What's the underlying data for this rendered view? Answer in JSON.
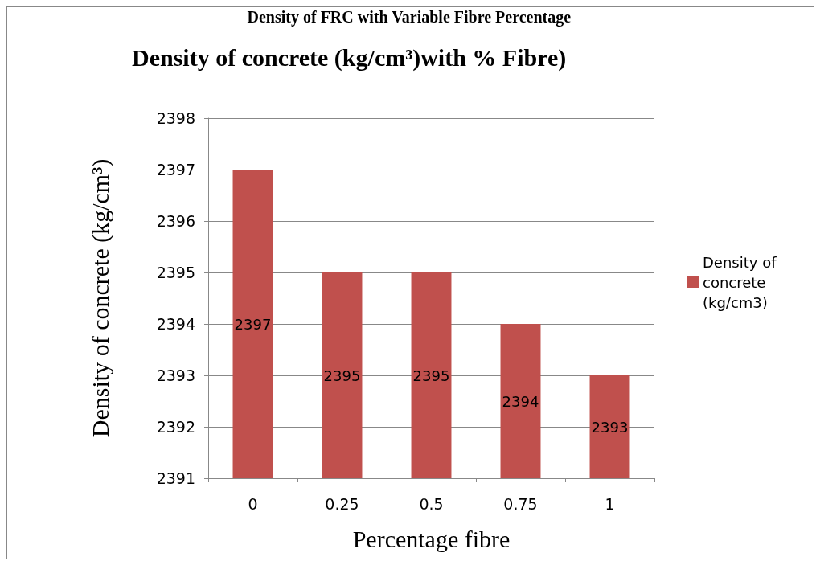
{
  "chart_data": {
    "type": "bar",
    "title": "Density of concrete (kg/cm³)with % Fibre)",
    "annotations": [
      "Density of FRC with Variable Fibre Percentage"
    ],
    "xlabel": "Percentage fibre",
    "ylabel": "Density of concrete (kg/cm³)",
    "categories": [
      "0",
      "0.25",
      "0.5",
      "0.75",
      "1"
    ],
    "series": [
      {
        "name": "Density of concrete (kg/cm3)",
        "color": "#c0504d",
        "values": [
          2397,
          2395,
          2395,
          2394,
          2393
        ]
      }
    ],
    "ylim": [
      2391,
      2398
    ],
    "yticks": [
      2391,
      2392,
      2393,
      2394,
      2395,
      2396,
      2397,
      2398
    ],
    "grid": "y",
    "legend": "right",
    "data_labels": true
  }
}
